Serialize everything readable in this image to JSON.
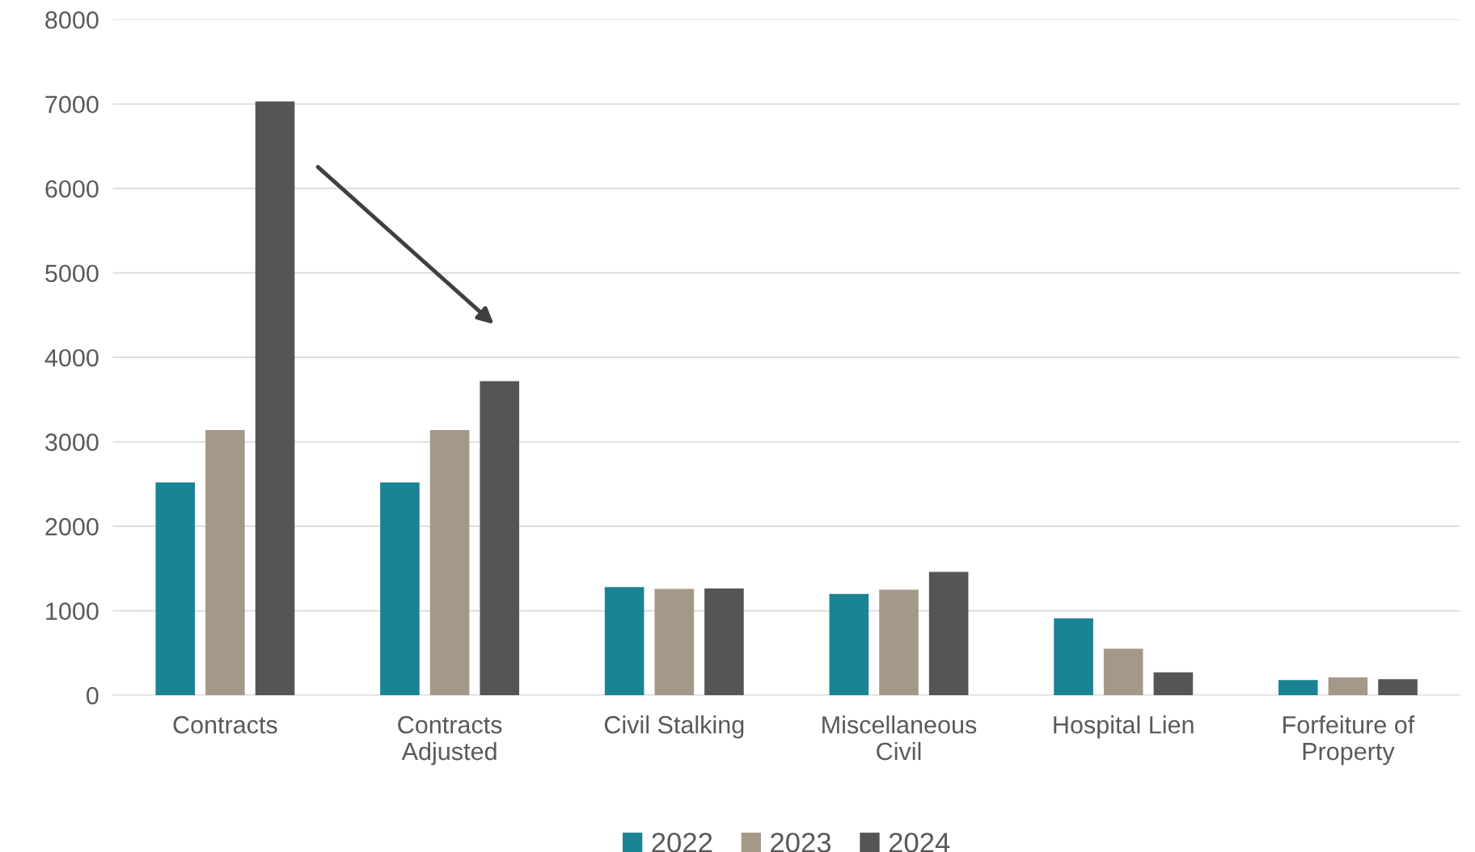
{
  "chart_data": {
    "type": "bar",
    "categories": [
      "Contracts",
      "Contracts\nAdjusted",
      "Civil Stalking",
      "Miscellaneous\nCivil",
      "Hospital Lien",
      "Forfeiture of\nProperty"
    ],
    "series": [
      {
        "name": "2022",
        "color": "#1a8394",
        "values": [
          2520,
          2520,
          1280,
          1200,
          910,
          180
        ]
      },
      {
        "name": "2023",
        "color": "#a59888",
        "values": [
          3140,
          3140,
          1260,
          1250,
          550,
          210
        ]
      },
      {
        "name": "2024",
        "color": "#555555",
        "values": [
          7030,
          3720,
          1265,
          1460,
          270,
          190
        ]
      }
    ],
    "ylim": [
      0,
      8000
    ],
    "yticks": [
      0,
      1000,
      2000,
      3000,
      4000,
      5000,
      6000,
      7000,
      8000
    ],
    "grid": "y",
    "legend": "bottom"
  }
}
